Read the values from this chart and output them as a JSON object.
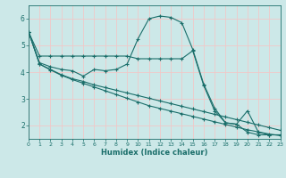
{
  "xlabel": "Humidex (Indice chaleur)",
  "background_color": "#cce8e8",
  "grid_color": "#f0c8c8",
  "line_color": "#1a6e6a",
  "xlim": [
    0,
    23
  ],
  "ylim": [
    1.5,
    6.5
  ],
  "yticks": [
    2,
    3,
    4,
    5,
    6
  ],
  "xticks": [
    0,
    1,
    2,
    3,
    4,
    5,
    6,
    7,
    8,
    9,
    10,
    11,
    12,
    13,
    14,
    15,
    16,
    17,
    18,
    19,
    20,
    21,
    22,
    23
  ],
  "lines": [
    {
      "x": [
        0,
        1,
        2,
        3,
        4,
        5,
        6,
        7,
        8,
        9,
        10,
        11,
        12,
        13,
        14,
        15,
        16,
        17,
        18,
        19,
        20,
        21,
        22,
        23
      ],
      "y": [
        5.5,
        4.6,
        4.6,
        4.6,
        4.6,
        4.6,
        4.6,
        4.6,
        4.6,
        4.6,
        4.5,
        4.5,
        4.5,
        4.5,
        4.5,
        4.8,
        3.5,
        2.55,
        2.1,
        2.05,
        1.75,
        1.65,
        1.65,
        1.65
      ]
    },
    {
      "x": [
        0,
        1,
        2,
        3,
        4,
        5,
        6,
        7,
        8,
        9,
        10,
        11,
        12,
        13,
        14,
        15,
        16,
        17,
        18,
        19,
        20,
        21,
        22,
        23
      ],
      "y": [
        5.5,
        4.35,
        4.2,
        4.1,
        4.05,
        3.85,
        4.1,
        4.05,
        4.1,
        4.3,
        5.25,
        6.0,
        6.1,
        6.05,
        5.85,
        4.85,
        3.55,
        2.65,
        2.1,
        2.05,
        2.55,
        1.75,
        1.65,
        1.65
      ]
    },
    {
      "x": [
        0,
        1,
        2,
        3,
        4,
        5,
        6,
        7,
        8,
        9,
        10,
        11,
        12,
        13,
        14,
        15,
        16,
        17,
        18,
        19,
        20,
        21,
        22,
        23
      ],
      "y": [
        5.5,
        4.3,
        4.1,
        3.9,
        3.75,
        3.65,
        3.52,
        3.42,
        3.32,
        3.22,
        3.12,
        3.02,
        2.92,
        2.82,
        2.72,
        2.62,
        2.52,
        2.42,
        2.32,
        2.22,
        2.12,
        2.02,
        1.92,
        1.82
      ]
    },
    {
      "x": [
        0,
        1,
        2,
        3,
        4,
        5,
        6,
        7,
        8,
        9,
        10,
        11,
        12,
        13,
        14,
        15,
        16,
        17,
        18,
        19,
        20,
        21,
        22,
        23
      ],
      "y": [
        5.5,
        4.3,
        4.08,
        3.88,
        3.72,
        3.58,
        3.44,
        3.3,
        3.16,
        3.02,
        2.88,
        2.74,
        2.64,
        2.54,
        2.44,
        2.34,
        2.24,
        2.14,
        2.04,
        1.94,
        1.84,
        1.76,
        1.68,
        1.62
      ]
    }
  ]
}
